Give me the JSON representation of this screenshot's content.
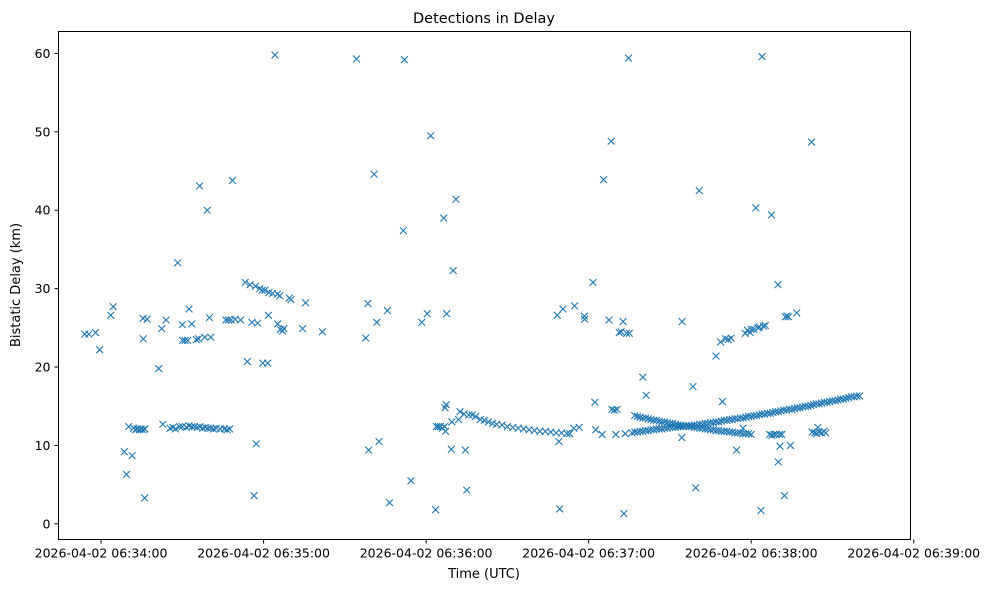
{
  "chart_data": {
    "type": "scatter",
    "title": "Detections in Delay",
    "xlabel": "Time (UTC)",
    "ylabel": "Bistatic Delay (km)",
    "marker": "x",
    "color": "#1f77b4",
    "x_unit": "seconds after 2026-04-02 06:34:00",
    "xlim": [
      -15.7,
      298.8
    ],
    "ylim": [
      -2.0,
      62.8
    ],
    "x_ticks": [
      {
        "value": 0,
        "label": "2026-04-02 06:34:00"
      },
      {
        "value": 60,
        "label": "2026-04-02 06:35:00"
      },
      {
        "value": 120,
        "label": "2026-04-02 06:36:00"
      },
      {
        "value": 180,
        "label": "2026-04-02 06:37:00"
      },
      {
        "value": 240,
        "label": "2026-04-02 06:38:00"
      },
      {
        "value": 300,
        "label": "2026-04-02 06:39:00"
      }
    ],
    "y_ticks": [
      {
        "value": 0,
        "label": "0"
      },
      {
        "value": 10,
        "label": "10"
      },
      {
        "value": 20,
        "label": "20"
      },
      {
        "value": 30,
        "label": "30"
      },
      {
        "value": 40,
        "label": "40"
      },
      {
        "value": 50,
        "label": "50"
      },
      {
        "value": 60,
        "label": "60"
      }
    ],
    "scatter_points": [
      [
        -6,
        24.2
      ],
      [
        -4.5,
        24.2
      ],
      [
        -2,
        24.4
      ],
      [
        -0.5,
        22.2
      ],
      [
        3.6,
        26.6
      ],
      [
        4.5,
        27.7
      ],
      [
        8.6,
        9.2
      ],
      [
        9.4,
        6.3
      ],
      [
        10.2,
        12.4
      ],
      [
        11.5,
        8.7
      ],
      [
        12,
        12.2
      ],
      [
        12.7,
        12.0
      ],
      [
        13.3,
        12.1
      ],
      [
        14.2,
        12.0
      ],
      [
        14.8,
        12.1
      ],
      [
        15.5,
        12.0
      ],
      [
        16.2,
        12.1
      ],
      [
        15.5,
        26.2
      ],
      [
        15.6,
        23.6
      ],
      [
        16.1,
        3.3
      ],
      [
        17,
        26.1
      ],
      [
        21.3,
        19.8
      ],
      [
        22.4,
        24.9
      ],
      [
        22.8,
        12.7
      ],
      [
        24,
        26
      ],
      [
        25.5,
        12.2
      ],
      [
        26.5,
        12.3
      ],
      [
        27.5,
        12.1
      ],
      [
        29,
        12.4
      ],
      [
        30,
        12.4
      ],
      [
        31.5,
        12.3
      ],
      [
        32.5,
        12.5
      ],
      [
        33.5,
        12.4
      ],
      [
        34.5,
        12.4
      ],
      [
        35.5,
        12.3
      ],
      [
        36.5,
        12.4
      ],
      [
        37.5,
        12.2
      ],
      [
        38.5,
        12.3
      ],
      [
        39.5,
        12.2
      ],
      [
        40.5,
        12.2
      ],
      [
        41.5,
        12.1
      ],
      [
        42.5,
        12.2
      ],
      [
        44,
        12.1
      ],
      [
        45.5,
        12.1
      ],
      [
        46.5,
        12.0
      ],
      [
        47.5,
        12.1
      ],
      [
        28.3,
        33.3
      ],
      [
        30,
        25.4
      ],
      [
        30.1,
        23.4
      ],
      [
        31,
        23.4
      ],
      [
        32,
        23.4
      ],
      [
        32.5,
        27.4
      ],
      [
        33.5,
        25.5
      ],
      [
        35.2,
        23.5
      ],
      [
        36,
        23.6
      ],
      [
        36.4,
        43.1
      ],
      [
        38.3,
        23.8
      ],
      [
        39.2,
        40
      ],
      [
        40,
        26.3
      ],
      [
        40.5,
        23.8
      ],
      [
        46.1,
        26
      ],
      [
        47,
        26
      ],
      [
        48,
        26
      ],
      [
        48.5,
        43.8
      ],
      [
        49.5,
        26.1
      ],
      [
        51.5,
        26
      ],
      [
        53.2,
        30.8
      ],
      [
        54,
        20.7
      ],
      [
        55,
        30.5
      ],
      [
        55.7,
        25.7
      ],
      [
        56.5,
        3.6
      ],
      [
        57,
        30.3
      ],
      [
        57.3,
        10.2
      ],
      [
        57.8,
        25.6
      ],
      [
        58.6,
        30
      ],
      [
        59.5,
        29.8
      ],
      [
        59.7,
        20.5
      ],
      [
        60.5,
        29.8
      ],
      [
        61.5,
        20.5
      ],
      [
        61.8,
        26.6
      ],
      [
        62,
        29.5
      ],
      [
        63.3,
        29.4
      ],
      [
        64.2,
        59.8
      ],
      [
        65.1,
        29.3
      ],
      [
        65.2,
        25.5
      ],
      [
        66,
        29.1
      ],
      [
        66.2,
        24.8
      ],
      [
        67,
        24.6
      ],
      [
        67.5,
        24.9
      ],
      [
        69.5,
        28.8
      ],
      [
        70.1,
        28.6
      ],
      [
        74.4,
        24.9
      ],
      [
        75.5,
        28.2
      ],
      [
        81.7,
        24.5
      ],
      [
        94.3,
        59.3
      ],
      [
        97.7,
        23.7
      ],
      [
        98.5,
        28.1
      ],
      [
        98.8,
        9.4
      ],
      [
        100.8,
        44.6
      ],
      [
        101.8,
        25.7
      ],
      [
        102.6,
        10.5
      ],
      [
        105.7,
        27.2
      ],
      [
        106.5,
        2.7
      ],
      [
        111.6,
        37.4
      ],
      [
        112,
        59.2
      ],
      [
        114.4,
        5.5
      ],
      [
        118.4,
        25.7
      ],
      [
        120.4,
        26.8
      ],
      [
        121.7,
        49.5
      ],
      [
        123.5,
        1.8
      ],
      [
        123.8,
        12.4
      ],
      [
        124.5,
        12.4
      ],
      [
        125.3,
        12.4
      ],
      [
        126,
        12.2
      ],
      [
        126.5,
        39
      ],
      [
        126.8,
        12.4
      ],
      [
        127.2,
        11.8
      ],
      [
        127,
        14.8
      ],
      [
        127.4,
        15.2
      ],
      [
        127.6,
        26.8
      ],
      [
        129.3,
        9.5
      ],
      [
        129.5,
        13
      ],
      [
        130,
        32.3
      ],
      [
        131,
        41.4
      ],
      [
        132,
        13.3
      ],
      [
        132.5,
        14.3
      ],
      [
        134.5,
        9.4
      ],
      [
        134,
        14
      ],
      [
        135,
        4.3
      ],
      [
        135.8,
        13.9
      ],
      [
        137,
        13.9
      ],
      [
        138.3,
        13.7
      ],
      [
        140,
        13.3
      ],
      [
        141.5,
        13.2
      ],
      [
        143,
        13
      ],
      [
        144.5,
        12.8
      ],
      [
        146,
        12.7
      ],
      [
        148,
        12.6
      ],
      [
        150,
        12.4
      ],
      [
        152,
        12.3
      ],
      [
        154,
        12.2
      ],
      [
        156,
        12.1
      ],
      [
        158,
        12
      ],
      [
        160,
        11.9
      ],
      [
        162,
        11.8
      ],
      [
        164,
        11.8
      ],
      [
        166,
        11.7
      ],
      [
        168,
        11.6
      ],
      [
        170,
        11.6
      ],
      [
        172,
        11.5
      ],
      [
        173,
        11.5
      ],
      [
        174.5,
        12.2
      ],
      [
        176.5,
        12.3
      ],
      [
        168.4,
        26.6
      ],
      [
        169,
        10.5
      ],
      [
        169.3,
        1.9
      ],
      [
        170.5,
        27.4
      ],
      [
        174.8,
        27.8
      ],
      [
        178.4,
        26.5
      ],
      [
        178.5,
        26.1
      ],
      [
        181.6,
        30.8
      ],
      [
        182.3,
        15.5
      ],
      [
        182.6,
        12
      ],
      [
        185,
        11.4
      ],
      [
        185.5,
        43.9
      ],
      [
        187.5,
        26
      ],
      [
        188.3,
        48.8
      ],
      [
        188.6,
        14.6
      ],
      [
        189.5,
        14.5
      ],
      [
        190,
        11.4
      ],
      [
        190.5,
        14.6
      ],
      [
        191.3,
        24.4
      ],
      [
        192,
        24.5
      ],
      [
        192.7,
        25.8
      ],
      [
        193,
        1.3
      ],
      [
        193.5,
        11.5
      ],
      [
        194,
        24.3
      ],
      [
        194.7,
        59.4
      ],
      [
        195,
        24.3
      ],
      [
        196,
        11.6
      ],
      [
        197,
        11.7
      ],
      [
        198,
        11.7
      ],
      [
        199,
        11.8
      ],
      [
        200,
        11.8
      ],
      [
        201,
        11.9
      ],
      [
        202,
        11.9
      ],
      [
        203,
        12
      ],
      [
        204,
        12
      ],
      [
        205,
        12.1
      ],
      [
        206,
        12.1
      ],
      [
        207,
        12.1
      ],
      [
        208,
        12.2
      ],
      [
        209,
        12.2
      ],
      [
        210,
        12.3
      ],
      [
        211,
        12.3
      ],
      [
        212,
        12.3
      ],
      [
        213,
        12.4
      ],
      [
        214,
        12.4
      ],
      [
        215,
        12.4
      ],
      [
        216,
        12.5
      ],
      [
        217,
        12.5
      ],
      [
        218,
        12.5
      ],
      [
        219,
        12.6
      ],
      [
        220,
        12.6
      ],
      [
        221,
        12.7
      ],
      [
        222,
        12.7
      ],
      [
        223,
        12.8
      ],
      [
        224,
        12.8
      ],
      [
        225,
        12.9
      ],
      [
        226,
        12.9
      ],
      [
        227,
        13
      ],
      [
        228,
        13
      ],
      [
        229,
        13.1
      ],
      [
        230,
        13.2
      ],
      [
        231,
        13.2
      ],
      [
        232,
        13.3
      ],
      [
        233,
        13.3
      ],
      [
        234,
        13.4
      ],
      [
        235,
        13.4
      ],
      [
        236,
        13.5
      ],
      [
        237,
        13.5
      ],
      [
        238,
        13.6
      ],
      [
        239,
        13.7
      ],
      [
        240,
        13.7
      ],
      [
        241,
        13.8
      ],
      [
        242,
        13.8
      ],
      [
        243,
        13.9
      ],
      [
        244,
        14
      ],
      [
        245,
        14
      ],
      [
        246,
        14.1
      ],
      [
        247,
        14.1
      ],
      [
        248,
        14.2
      ],
      [
        249,
        14.3
      ],
      [
        250,
        14.3
      ],
      [
        251,
        14.4
      ],
      [
        252,
        14.5
      ],
      [
        253,
        14.5
      ],
      [
        254,
        14.6
      ],
      [
        255,
        14.6
      ],
      [
        256,
        14.7
      ],
      [
        257,
        14.8
      ],
      [
        258,
        14.8
      ],
      [
        259,
        14.9
      ],
      [
        260,
        15
      ],
      [
        261,
        15
      ],
      [
        262,
        15.1
      ],
      [
        263,
        15.2
      ],
      [
        264,
        15.3
      ],
      [
        265,
        15.3
      ],
      [
        266,
        15.4
      ],
      [
        267,
        15.5
      ],
      [
        268,
        15.5
      ],
      [
        269,
        15.6
      ],
      [
        270,
        15.7
      ],
      [
        271,
        15.7
      ],
      [
        272,
        15.8
      ],
      [
        273,
        15.9
      ],
      [
        274,
        15.9
      ],
      [
        275,
        16
      ],
      [
        276,
        16.1
      ],
      [
        277,
        16.2
      ],
      [
        278,
        16.2
      ],
      [
        279,
        16.3
      ],
      [
        280,
        16.3
      ],
      [
        197,
        13.8
      ],
      [
        198,
        13.7
      ],
      [
        199,
        13.6
      ],
      [
        200,
        13.5
      ],
      [
        201,
        13.5
      ],
      [
        202,
        13.4
      ],
      [
        203,
        13.3
      ],
      [
        204,
        13.2
      ],
      [
        205,
        13.2
      ],
      [
        206,
        13.1
      ],
      [
        207,
        13
      ],
      [
        208,
        13
      ],
      [
        209,
        12.9
      ],
      [
        210,
        12.8
      ],
      [
        211,
        12.8
      ],
      [
        212,
        12.7
      ],
      [
        213,
        12.6
      ],
      [
        214,
        12.6
      ],
      [
        215,
        12.5
      ],
      [
        216,
        12.5
      ],
      [
        217,
        12.4
      ],
      [
        218,
        12.4
      ],
      [
        219,
        12.3
      ],
      [
        220,
        12.3
      ],
      [
        221,
        12.2
      ],
      [
        222,
        12.2
      ],
      [
        223,
        12.1
      ],
      [
        224,
        12.1
      ],
      [
        225,
        12
      ],
      [
        226,
        12
      ],
      [
        227,
        11.9
      ],
      [
        228,
        11.9
      ],
      [
        229,
        11.8
      ],
      [
        230,
        11.8
      ],
      [
        231,
        11.8
      ],
      [
        232,
        11.7
      ],
      [
        233,
        11.7
      ],
      [
        234,
        11.6
      ],
      [
        235,
        11.6
      ],
      [
        236,
        11.6
      ],
      [
        237,
        11.5
      ],
      [
        238,
        11.5
      ],
      [
        239,
        11.5
      ],
      [
        240,
        11.4
      ],
      [
        200,
        18.7
      ],
      [
        201.2,
        16.4
      ],
      [
        214.4,
        11
      ],
      [
        214.5,
        25.8
      ],
      [
        218.5,
        17.5
      ],
      [
        219.5,
        4.6
      ],
      [
        220.8,
        42.5
      ],
      [
        227,
        21.4
      ],
      [
        228.7,
        23.2
      ],
      [
        229.4,
        15.6
      ],
      [
        230.5,
        23.6
      ],
      [
        231.5,
        23.5
      ],
      [
        232.6,
        23.7
      ],
      [
        234.6,
        9.4
      ],
      [
        237,
        12.2
      ],
      [
        237.8,
        24.3
      ],
      [
        238.6,
        24.7
      ],
      [
        239.6,
        24.4
      ],
      [
        240,
        24.8
      ],
      [
        241,
        24.8
      ],
      [
        241.7,
        40.3
      ],
      [
        242.5,
        25
      ],
      [
        243,
        25.1
      ],
      [
        243.6,
        1.7
      ],
      [
        244,
        59.6
      ],
      [
        244.5,
        25.2
      ],
      [
        245.2,
        25.3
      ],
      [
        246.8,
        11.4
      ],
      [
        247.5,
        39.4
      ],
      [
        247.6,
        11.3
      ],
      [
        248.4,
        11.4
      ],
      [
        249.3,
        11.4
      ],
      [
        249.9,
        30.5
      ],
      [
        250,
        7.9
      ],
      [
        250.5,
        11.4
      ],
      [
        250.6,
        9.9
      ],
      [
        251.3,
        11.4
      ],
      [
        252.3,
        3.6
      ],
      [
        252.6,
        26.4
      ],
      [
        253.2,
        26.5
      ],
      [
        253.8,
        26.4
      ],
      [
        254.5,
        10
      ],
      [
        256.8,
        26.9
      ],
      [
        262.3,
        48.7
      ],
      [
        262.5,
        11.7
      ],
      [
        263.5,
        11.6
      ],
      [
        264.2,
        11.5
      ],
      [
        264.6,
        12.3
      ],
      [
        265.1,
        11.7
      ],
      [
        266,
        11.6
      ],
      [
        266.9,
        11.8
      ],
      [
        267.5,
        11.6
      ]
    ]
  }
}
